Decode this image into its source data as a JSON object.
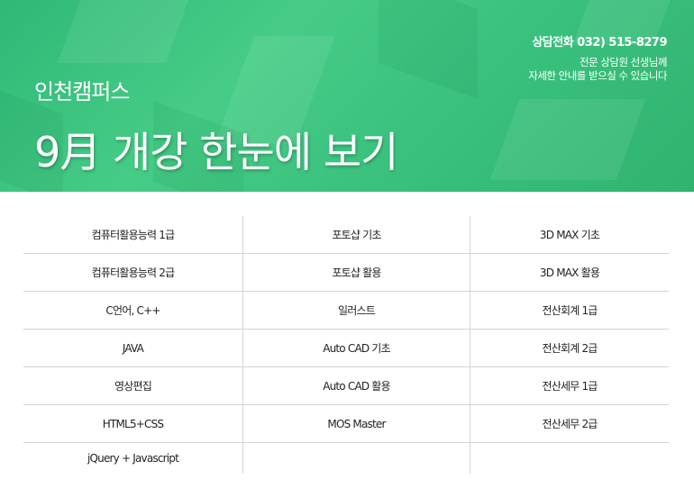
{
  "header": {
    "campus": "인천캠퍼스",
    "title": "9月  개강 한눈에 보기",
    "phone": "상담전화 032) 515-8279",
    "desc_line1": "전문 상담원 선생님께",
    "desc_line2": "자세한 안내를 받으실 수 있습니다",
    "bg_color": "#3dc47e"
  },
  "courses": [
    [
      "컴퓨터활용능력 1급",
      "포토샵 기초",
      "3D MAX 기초"
    ],
    [
      "컴퓨터활용능력 2급",
      "포토샵 활용",
      "3D MAX 활용"
    ],
    [
      "C언어, C++",
      "일러스트",
      "전산회계 1급"
    ],
    [
      "JAVA",
      "Auto CAD 기초",
      "전산회계 2급"
    ],
    [
      "영상편집",
      "Auto CAD 활용",
      "전산세무 1급"
    ],
    [
      "HTML5+CSS",
      "MOS Master",
      "전산세무 2급"
    ],
    [
      "jQuery + Javascript",
      "",
      ""
    ]
  ]
}
